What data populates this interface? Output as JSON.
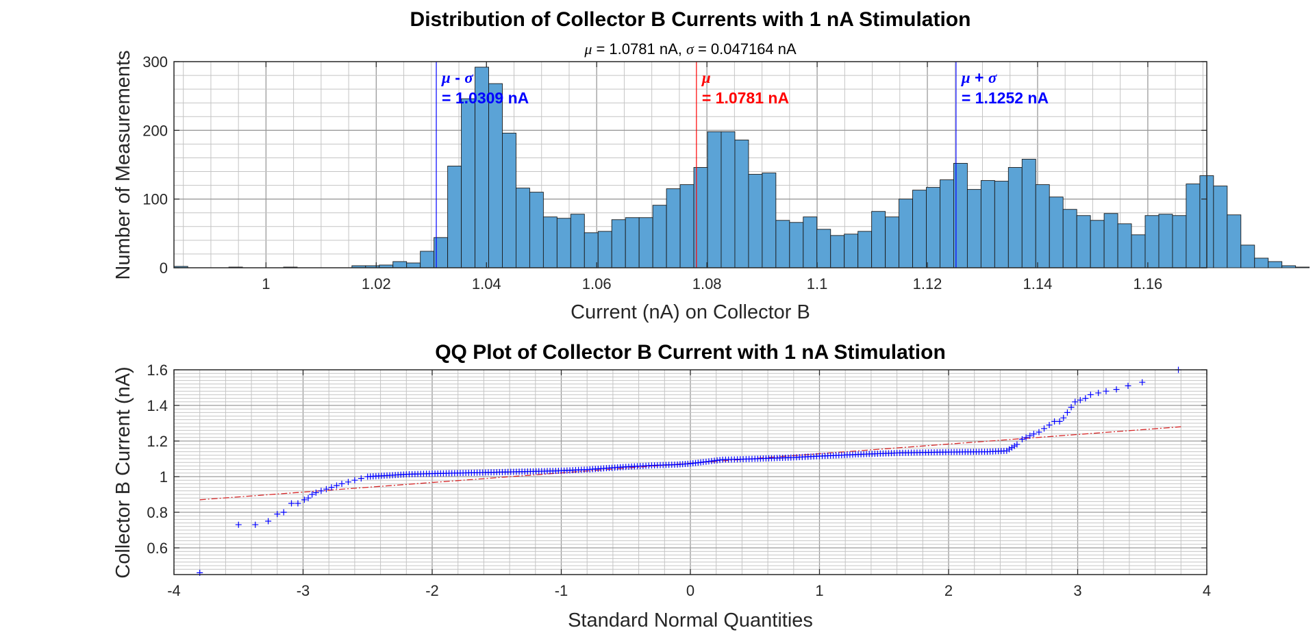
{
  "chart_data": [
    {
      "type": "bar",
      "title": "Distribution of Collector B Currents with 1 nA Stimulation",
      "subtitle": {
        "mu_symbol": "μ",
        "mu_text": " = 1.0781 nA, ",
        "sigma_symbol": "σ",
        "sigma_text": " = 0.047164 nA"
      },
      "xlabel": "Current (nA) on Collector B",
      "ylabel": "Number of Measurements",
      "xlim": [
        0.9833,
        1.1707
      ],
      "ylim": [
        0,
        300
      ],
      "xticks": [
        1,
        1.02,
        1.04,
        1.06,
        1.08,
        1.1,
        1.12,
        1.14,
        1.16
      ],
      "xtick_labels": [
        "1",
        "1.02",
        "1.04",
        "1.06",
        "1.08",
        "1.1",
        "1.12",
        "1.14",
        "1.16"
      ],
      "yticks": [
        0,
        100,
        200,
        300
      ],
      "ytick_labels": [
        "0",
        "100",
        "200",
        "300"
      ],
      "grid": true,
      "bin_start": 0.98333,
      "bin_width": 0.0024815,
      "values": [
        2,
        0,
        0,
        0,
        1,
        0,
        0,
        0,
        1,
        0,
        0,
        0,
        0,
        3,
        3,
        4,
        9,
        7,
        24,
        44,
        148,
        246,
        292,
        268,
        196,
        116,
        110,
        74,
        72,
        78,
        51,
        53,
        70,
        73,
        73,
        91,
        115,
        121,
        146,
        198,
        198,
        186,
        136,
        138,
        69,
        66,
        74,
        56,
        47,
        49,
        53,
        82,
        74,
        100,
        113,
        117,
        128,
        152,
        114,
        127,
        126,
        146,
        158,
        121,
        103,
        85,
        76,
        69,
        79,
        64,
        48,
        76,
        78,
        76,
        122,
        134,
        119,
        77,
        33,
        14,
        9,
        3,
        1,
        0,
        0,
        0,
        0,
        0,
        0,
        0,
        1,
        0,
        0,
        0
      ],
      "bar_color": "#5ba3d6",
      "bar_edge_color": "#1a1a1a",
      "reference_lines": [
        {
          "name": "mu-minus-sigma",
          "x": 1.0309,
          "color": "#0000ff",
          "symbol": "μ",
          "symbol_suffix": " - ",
          "symbol2": "σ",
          "value_label": "= 1.0309 nA"
        },
        {
          "name": "mu",
          "x": 1.0781,
          "color": "#ff0000",
          "symbol": "μ",
          "symbol_suffix": "",
          "symbol2": "",
          "value_label": "= 1.0781 nA"
        },
        {
          "name": "mu-plus-sigma",
          "x": 1.1252,
          "color": "#0000ff",
          "symbol": "μ",
          "symbol_suffix": " + ",
          "symbol2": "σ",
          "value_label": "= 1.1252 nA"
        }
      ]
    },
    {
      "type": "scatter",
      "title": "QQ Plot of Collector B Current with 1 nA Stimulation",
      "xlabel": "Standard Normal Quantities",
      "ylabel": "Collector B Current (nA)",
      "xlim": [
        -4,
        4
      ],
      "ylim": [
        0.45,
        1.6
      ],
      "xticks": [
        -4,
        -3,
        -2,
        -1,
        0,
        1,
        2,
        3,
        4
      ],
      "xtick_labels": [
        "-4",
        "-3",
        "-2",
        "-1",
        "0",
        "1",
        "2",
        "3",
        "4"
      ],
      "yticks": [
        0.6,
        0.8,
        1,
        1.2,
        1.4,
        1.6
      ],
      "ytick_labels": [
        "0.6",
        "0.8",
        "1",
        "1.2",
        "1.4",
        "1.6"
      ],
      "grid": true,
      "marker": "+",
      "marker_color": "#0000ff",
      "reference_line": {
        "color": "#d62728",
        "style": "dash-dot",
        "x": [
          -3.8,
          3.8
        ],
        "y": [
          0.87,
          1.28
        ]
      },
      "quantile_curve": {
        "x": [
          -2.5,
          -2.2,
          -2.0,
          -1.5,
          -1.0,
          -0.8,
          -0.5,
          -0.3,
          -0.1,
          0.0,
          0.1,
          0.25,
          0.5,
          0.8,
          1.0,
          1.3,
          1.6,
          2.0,
          2.3,
          2.45,
          2.55
        ],
        "y": [
          1.0,
          1.013,
          1.017,
          1.025,
          1.033,
          1.04,
          1.055,
          1.063,
          1.068,
          1.073,
          1.082,
          1.095,
          1.1,
          1.108,
          1.115,
          1.125,
          1.133,
          1.138,
          1.14,
          1.145,
          1.19
        ]
      },
      "tail_points": [
        {
          "x": -3.8,
          "y": 0.46
        },
        {
          "x": -3.5,
          "y": 0.73
        },
        {
          "x": -3.37,
          "y": 0.73
        },
        {
          "x": -3.27,
          "y": 0.75
        },
        {
          "x": -3.2,
          "y": 0.79
        },
        {
          "x": -3.15,
          "y": 0.8
        },
        {
          "x": -3.09,
          "y": 0.85
        },
        {
          "x": -3.04,
          "y": 0.85
        },
        {
          "x": -2.99,
          "y": 0.87
        },
        {
          "x": -2.96,
          "y": 0.88
        },
        {
          "x": -2.93,
          "y": 0.9
        },
        {
          "x": -2.9,
          "y": 0.91
        },
        {
          "x": -2.86,
          "y": 0.92
        },
        {
          "x": -2.82,
          "y": 0.93
        },
        {
          "x": -2.78,
          "y": 0.94
        },
        {
          "x": -2.74,
          "y": 0.95
        },
        {
          "x": -2.7,
          "y": 0.96
        },
        {
          "x": -2.65,
          "y": 0.97
        },
        {
          "x": -2.6,
          "y": 0.98
        },
        {
          "x": -2.55,
          "y": 0.99
        },
        {
          "x": 2.57,
          "y": 1.21
        },
        {
          "x": 2.6,
          "y": 1.22
        },
        {
          "x": 2.63,
          "y": 1.23
        },
        {
          "x": 2.66,
          "y": 1.24
        },
        {
          "x": 2.7,
          "y": 1.25
        },
        {
          "x": 2.74,
          "y": 1.27
        },
        {
          "x": 2.78,
          "y": 1.29
        },
        {
          "x": 2.82,
          "y": 1.31
        },
        {
          "x": 2.86,
          "y": 1.31
        },
        {
          "x": 2.89,
          "y": 1.33
        },
        {
          "x": 2.92,
          "y": 1.36
        },
        {
          "x": 2.95,
          "y": 1.39
        },
        {
          "x": 2.98,
          "y": 1.42
        },
        {
          "x": 3.02,
          "y": 1.43
        },
        {
          "x": 3.06,
          "y": 1.44
        },
        {
          "x": 3.1,
          "y": 1.46
        },
        {
          "x": 3.16,
          "y": 1.47
        },
        {
          "x": 3.22,
          "y": 1.48
        },
        {
          "x": 3.3,
          "y": 1.49
        },
        {
          "x": 3.39,
          "y": 1.51
        },
        {
          "x": 3.5,
          "y": 1.53
        },
        {
          "x": 3.78,
          "y": 1.6
        }
      ]
    }
  ]
}
